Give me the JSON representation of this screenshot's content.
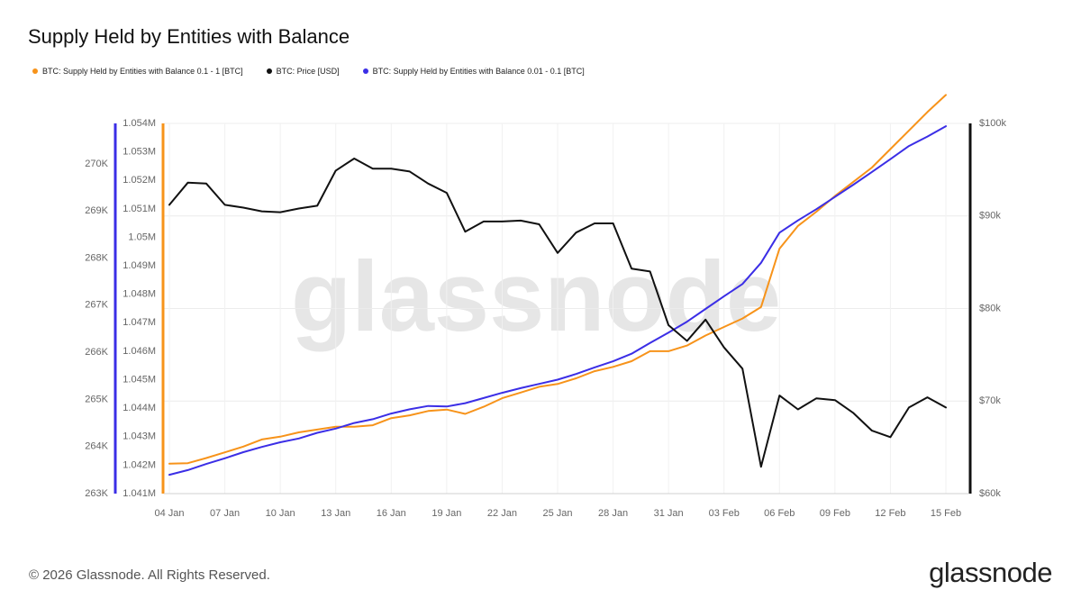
{
  "title": "Supply Held by Entities with Balance",
  "footer": "© 2026 Glassnode. All Rights Reserved.",
  "brand": "glassnode",
  "watermark": "glassnode",
  "colors": {
    "orange": "#f7931a",
    "black": "#111111",
    "purple": "#3b2ee6"
  },
  "chart_data": {
    "type": "line",
    "title": "Supply Held by Entities with Balance",
    "x": [
      "04 Jan",
      "05 Jan",
      "06 Jan",
      "07 Jan",
      "08 Jan",
      "09 Jan",
      "10 Jan",
      "11 Jan",
      "12 Jan",
      "13 Jan",
      "14 Jan",
      "15 Jan",
      "16 Jan",
      "17 Jan",
      "18 Jan",
      "19 Jan",
      "20 Jan",
      "21 Jan",
      "22 Jan",
      "23 Jan",
      "24 Jan",
      "25 Jan",
      "26 Jan",
      "27 Jan",
      "28 Jan",
      "29 Jan",
      "30 Jan",
      "31 Jan",
      "01 Feb",
      "02 Feb",
      "03 Feb",
      "04 Feb",
      "05 Feb",
      "06 Feb",
      "07 Feb",
      "08 Feb",
      "09 Feb",
      "10 Feb",
      "11 Feb",
      "12 Feb",
      "13 Feb",
      "14 Feb",
      "15 Feb"
    ],
    "x_tick_labels": [
      "04 Jan",
      "07 Jan",
      "10 Jan",
      "13 Jan",
      "16 Jan",
      "19 Jan",
      "22 Jan",
      "25 Jan",
      "28 Jan",
      "31 Jan",
      "03 Feb",
      "06 Feb",
      "09 Feb",
      "12 Feb",
      "15 Feb"
    ],
    "axes": {
      "purple_axis": {
        "side": "left-outer",
        "ylim": [
          263000,
          270860
        ],
        "ticks": [
          "263K",
          "264K",
          "265K",
          "266K",
          "267K",
          "268K",
          "269K",
          "270K"
        ],
        "tick_values": [
          263000,
          264000,
          265000,
          266000,
          267000,
          268000,
          269000,
          270000
        ]
      },
      "orange_axis": {
        "side": "left-inner",
        "ylim": [
          1041000,
          1054000
        ],
        "ticks": [
          "1.041M",
          "1.042M",
          "1.043M",
          "1.044M",
          "1.045M",
          "1.046M",
          "1.047M",
          "1.048M",
          "1.049M",
          "1.05M",
          "1.051M",
          "1.052M",
          "1.053M",
          "1.054M"
        ],
        "tick_values": [
          1041000,
          1042000,
          1043000,
          1044000,
          1045000,
          1046000,
          1047000,
          1048000,
          1049000,
          1050000,
          1051000,
          1052000,
          1053000,
          1054000
        ]
      },
      "price_axis": {
        "side": "right",
        "ylim": [
          60000,
          100000
        ],
        "ticks": [
          "$60k",
          "$70k",
          "$80k",
          "$90k",
          "$100k"
        ],
        "tick_values": [
          60000,
          70000,
          80000,
          90000,
          100000
        ]
      }
    },
    "series": [
      {
        "name": "BTC: Supply Held by Entities with Balance 0.1 - 1 [BTC]",
        "axis": "orange_axis",
        "color": "#f7931a",
        "values": [
          1042050,
          1042070,
          1042250,
          1042450,
          1042650,
          1042900,
          1043000,
          1043150,
          1043250,
          1043350,
          1043350,
          1043400,
          1043650,
          1043750,
          1043900,
          1043950,
          1043800,
          1044050,
          1044350,
          1044550,
          1044750,
          1044850,
          1045050,
          1045300,
          1045450,
          1045650,
          1046000,
          1046000,
          1046200,
          1046550,
          1046850,
          1047150,
          1047550,
          1049600,
          1050400,
          1050900,
          1051450,
          1051950,
          1052450,
          1053100,
          1053750,
          1054400,
          1055000
        ]
      },
      {
        "name": "BTC: Price [USD]",
        "axis": "price_axis",
        "color": "#111111",
        "values": [
          91200,
          93600,
          93500,
          91200,
          90900,
          90500,
          90400,
          90800,
          91100,
          94900,
          96200,
          95100,
          95100,
          94800,
          93500,
          92500,
          88300,
          89400,
          89400,
          89500,
          89100,
          86000,
          88200,
          89200,
          89200,
          84300,
          84000,
          78200,
          76500,
          78800,
          75800,
          73500,
          62900,
          70600,
          69100,
          70300,
          70100,
          68700,
          66800,
          66100,
          69300,
          70400,
          69300
        ]
      },
      {
        "name": "BTC: Supply Held by Entities with Balance 0.01 - 0.1 [BTC]",
        "axis": "purple_axis",
        "color": "#3b2ee6",
        "values": [
          263400,
          263500,
          263630,
          263750,
          263880,
          263990,
          264090,
          264170,
          264290,
          264380,
          264500,
          264580,
          264700,
          264790,
          264860,
          264850,
          264920,
          265030,
          265140,
          265240,
          265330,
          265420,
          265540,
          265680,
          265810,
          265970,
          266200,
          266420,
          266650,
          266920,
          267190,
          267450,
          267900,
          268540,
          268800,
          269040,
          269300,
          269560,
          269830,
          270100,
          270380,
          270580,
          270800
        ]
      }
    ],
    "legend": [
      "BTC: Supply Held by Entities with Balance 0.1 - 1 [BTC]",
      "BTC: Price [USD]",
      "BTC: Supply Held by Entities with Balance 0.01 - 0.1 [BTC]"
    ],
    "legend_position": "top-left",
    "grid": true
  }
}
